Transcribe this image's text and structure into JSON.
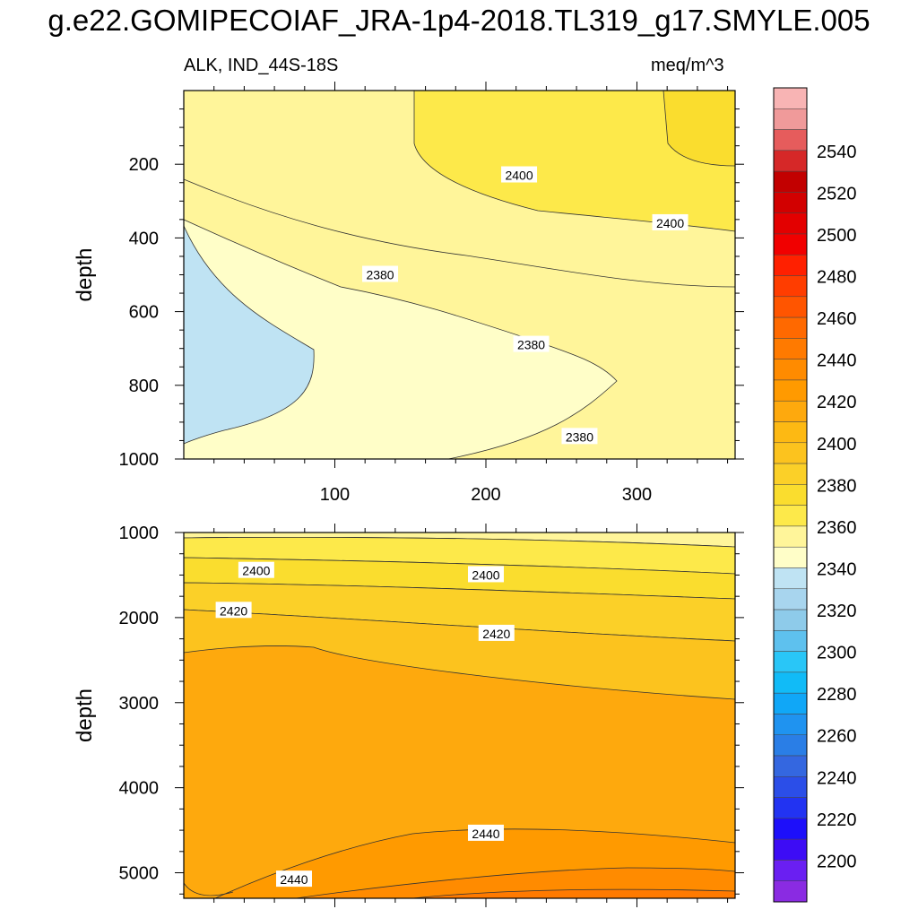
{
  "title": "g.e22.GOMIPECOIAF_JRA-1p4-2018.TL319_g17.SMYLE.005",
  "variable_label": "ALK, IND_44S-18S",
  "units_label": "meq/m^3",
  "colors": {
    "levels": [
      "#8a2be2",
      "#6a1ff2",
      "#3d0cf5",
      "#1d0ffa",
      "#2233f2",
      "#2b4ee8",
      "#3467e0",
      "#2a7ee6",
      "#1f93f0",
      "#10a7f7",
      "#11bbf7",
      "#29c6f7",
      "#5ec1ee",
      "#8ecbea",
      "#a8d5ee",
      "#bfe3f3",
      "#fffec8",
      "#fff59a",
      "#fde94a",
      "#fadd2e",
      "#fbd028",
      "#fcc31e",
      "#fdb913",
      "#fea90d",
      "#ff9a00",
      "#ff8b00",
      "#ff7a00",
      "#ff6900",
      "#ff5500",
      "#ff3d00",
      "#ff2000",
      "#f10000",
      "#e30000",
      "#d20000",
      "#c20000",
      "#d62828",
      "#e65c5c",
      "#f09a9a",
      "#f8b4b4"
    ],
    "line": "#333333"
  },
  "colorbar_ticks": [
    "2200",
    "2220",
    "2240",
    "2260",
    "2280",
    "2300",
    "2320",
    "2340",
    "2360",
    "2380",
    "2400",
    "2420",
    "2440",
    "2460",
    "2480",
    "2500",
    "2520",
    "2540"
  ],
  "chart_data": [
    {
      "type": "heatmap",
      "panel": "upper",
      "xlabel": "",
      "ylabel": "depth",
      "xlim": [
        0,
        365
      ],
      "ylim": [
        1000,
        0
      ],
      "x_ticks": [
        100,
        200,
        300
      ],
      "y_ticks": [
        200,
        400,
        600,
        800,
        1000
      ],
      "contour_labels": [
        {
          "text": "2400",
          "x": 222,
          "y": 230
        },
        {
          "text": "2400",
          "x": 322,
          "y": 360
        },
        {
          "text": "2380",
          "x": 130,
          "y": 500
        },
        {
          "text": "2380",
          "x": 230,
          "y": 690
        },
        {
          "text": "2380",
          "x": 262,
          "y": 940
        }
      ]
    },
    {
      "type": "heatmap",
      "panel": "lower",
      "xlabel": "",
      "ylabel": "depth",
      "xlim": [
        0,
        365
      ],
      "ylim": [
        5300,
        1000
      ],
      "x_ticks": [
        100,
        200,
        300
      ],
      "y_ticks": [
        1000,
        2000,
        3000,
        4000,
        5000
      ],
      "contour_labels": [
        {
          "text": "2400",
          "x": 48,
          "y": 1450
        },
        {
          "text": "2400",
          "x": 200,
          "y": 1500
        },
        {
          "text": "2420",
          "x": 33,
          "y": 1920
        },
        {
          "text": "2420",
          "x": 207,
          "y": 2190
        },
        {
          "text": "2440",
          "x": 200,
          "y": 4540
        },
        {
          "text": "2440",
          "x": 73,
          "y": 5080
        }
      ]
    }
  ]
}
